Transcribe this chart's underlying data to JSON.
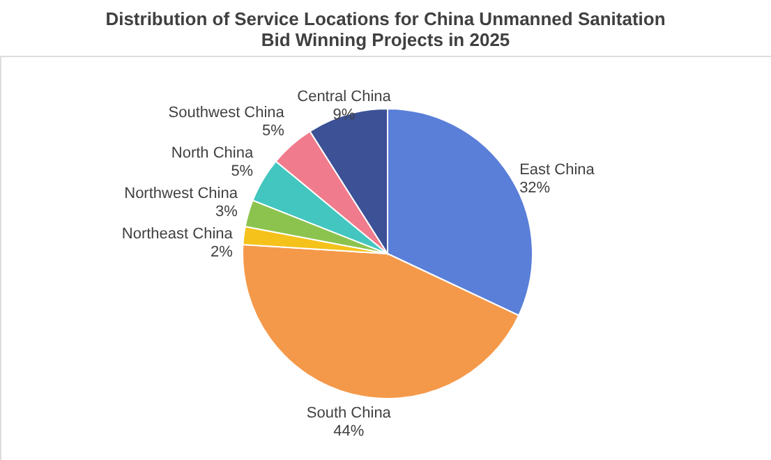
{
  "chart_data": {
    "type": "pie",
    "title": "Distribution of Service Locations for China Unmanned Sanitation\nBid Winning Projects in 2025",
    "categories": [
      "East China",
      "South China",
      "Northeast China",
      "Northwest China",
      "North China",
      "Southwest China",
      "Central China"
    ],
    "values": [
      32,
      44,
      2,
      3,
      5,
      5,
      9
    ],
    "value_labels": [
      "32%",
      "44%",
      "2%",
      "3%",
      "5%",
      "5%",
      "9%"
    ],
    "colors": [
      "#5a7fd8",
      "#f4994a",
      "#f5c21b",
      "#8cc34e",
      "#43c6bf",
      "#f07b8c",
      "#3c5196"
    ],
    "legend": false
  }
}
